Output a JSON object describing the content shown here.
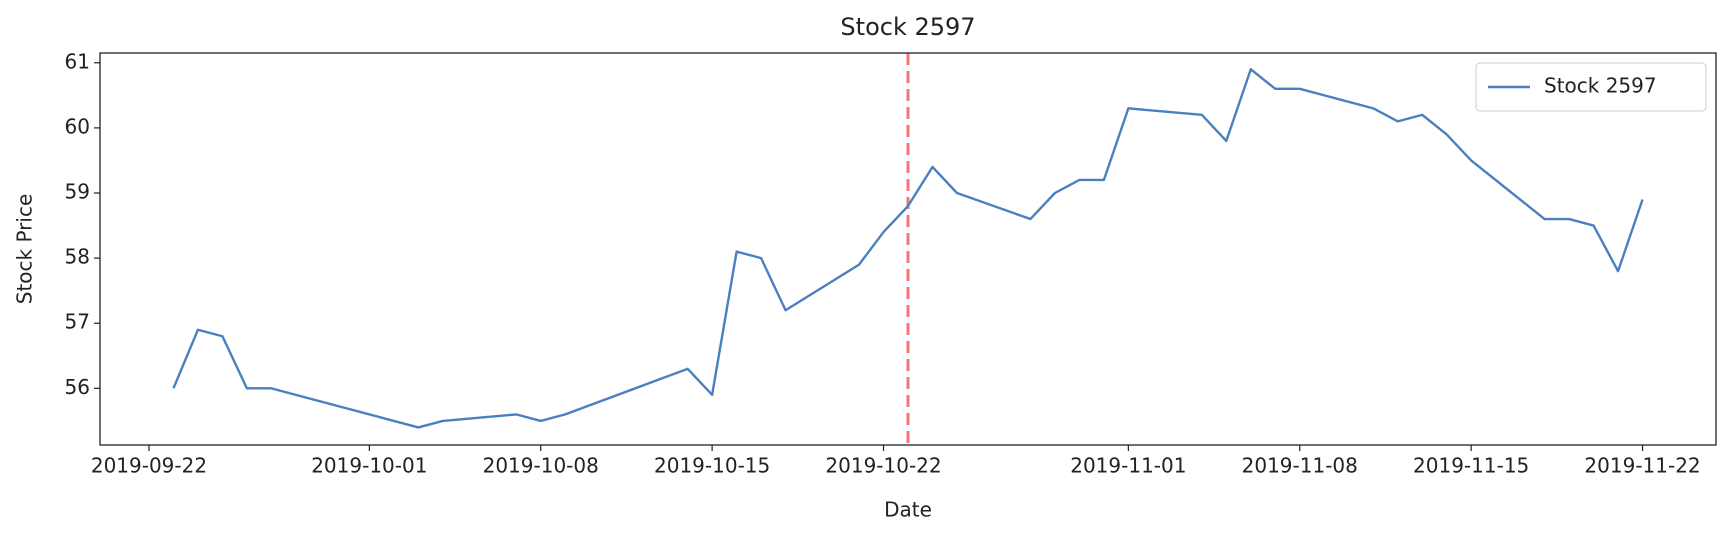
{
  "chart_data": {
    "type": "line",
    "title": "Stock 2597",
    "x_label": "Date",
    "y_label": "Stock Price",
    "x": [
      "2019-09-23",
      "2019-09-24",
      "2019-09-25",
      "2019-09-26",
      "2019-09-27",
      "2019-10-03",
      "2019-10-04",
      "2019-10-07",
      "2019-10-08",
      "2019-10-09",
      "2019-10-14",
      "2019-10-15",
      "2019-10-16",
      "2019-10-17",
      "2019-10-18",
      "2019-10-21",
      "2019-10-22",
      "2019-10-23",
      "2019-10-24",
      "2019-10-25",
      "2019-10-28",
      "2019-10-29",
      "2019-10-30",
      "2019-10-31",
      "2019-11-01",
      "2019-11-04",
      "2019-11-05",
      "2019-11-06",
      "2019-11-07",
      "2019-11-08",
      "2019-11-11",
      "2019-11-12",
      "2019-11-13",
      "2019-11-14",
      "2019-11-15",
      "2019-11-18",
      "2019-11-19",
      "2019-11-20",
      "2019-11-21",
      "2019-11-22"
    ],
    "series": [
      {
        "name": "Stock 2597",
        "color": "#4a80c0",
        "values": [
          56.0,
          56.9,
          56.8,
          56.0,
          56.0,
          55.4,
          55.5,
          55.6,
          55.5,
          55.6,
          56.3,
          55.9,
          58.1,
          58.0,
          57.2,
          57.9,
          58.4,
          58.8,
          59.4,
          59.0,
          58.6,
          59.0,
          59.2,
          59.2,
          60.3,
          60.2,
          59.8,
          60.9,
          60.6,
          60.6,
          60.3,
          60.1,
          60.2,
          59.9,
          59.5,
          58.6,
          58.6,
          58.5,
          57.8,
          58.9
        ]
      }
    ],
    "vline": {
      "x": "2019-10-23",
      "color": "#f07878"
    },
    "xlim": [
      "2019-09-20",
      "2019-11-25"
    ],
    "xticks": [
      "2019-09-22",
      "2019-10-01",
      "2019-10-08",
      "2019-10-15",
      "2019-10-22",
      "2019-11-01",
      "2019-11-08",
      "2019-11-15",
      "2019-11-22"
    ],
    "ylim": [
      55.13,
      61.15
    ],
    "yticks": [
      56,
      57,
      58,
      59,
      60,
      61
    ],
    "legend": "upper right",
    "grid": false
  }
}
